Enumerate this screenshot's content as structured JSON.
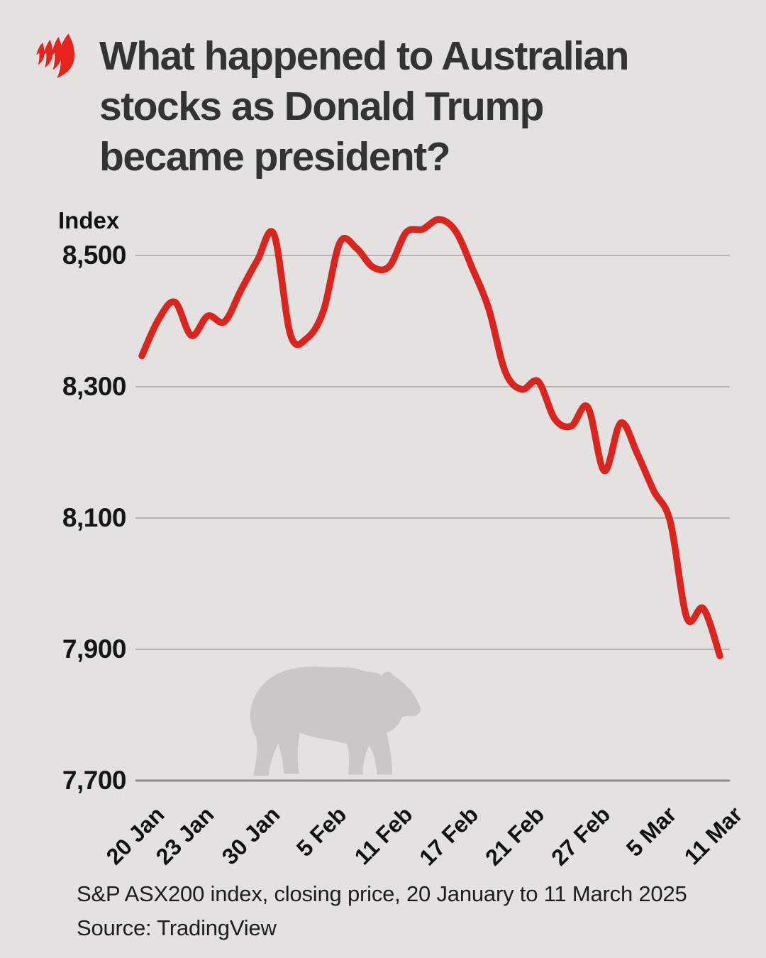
{
  "header": {
    "brand": "SBS",
    "title": "What happened to Australian stocks as Donald Trump became president?",
    "title_lines": [
      "What happened to Australian",
      "stocks as Donald Trump",
      "became president?"
    ]
  },
  "chart_data": {
    "type": "line",
    "title": "What happened to Australian stocks as Donald Trump became president?",
    "ylabel": "Index",
    "xlabel": "",
    "series": [
      {
        "name": "S&P ASX200 closing price",
        "x": [
          "20 Jan",
          "21 Jan",
          "22 Jan",
          "23 Jan",
          "24 Jan",
          "28 Jan",
          "29 Jan",
          "30 Jan",
          "31 Jan",
          "3 Feb",
          "4 Feb",
          "5 Feb",
          "6 Feb",
          "7 Feb",
          "10 Feb",
          "11 Feb",
          "12 Feb",
          "13 Feb",
          "14 Feb",
          "17 Feb",
          "18 Feb",
          "19 Feb",
          "20 Feb",
          "21 Feb",
          "24 Feb",
          "25 Feb",
          "26 Feb",
          "27 Feb",
          "28 Feb",
          "3 Mar",
          "4 Mar",
          "5 Mar",
          "6 Mar",
          "7 Mar",
          "10 Mar",
          "11 Mar"
        ],
        "values": [
          8347,
          8402,
          8429,
          8378,
          8408,
          8399,
          8447,
          8493,
          8532,
          8379,
          8374,
          8416,
          8520,
          8511,
          8482,
          8484,
          8535,
          8540,
          8555,
          8537,
          8481,
          8419,
          8323,
          8296,
          8308,
          8251,
          8240,
          8269,
          8172,
          8245,
          8198,
          8141,
          8094,
          7948,
          7962,
          7890
        ]
      }
    ],
    "y_ticks": [
      {
        "label": "8,500",
        "value": 8500
      },
      {
        "label": "8,300",
        "value": 8300
      },
      {
        "label": "8,100",
        "value": 8100
      },
      {
        "label": "7,900",
        "value": 7900
      },
      {
        "label": "7,700",
        "value": 7700
      }
    ],
    "x_ticks": [
      {
        "label": "20 Jan",
        "index": 0
      },
      {
        "label": "23 Jan",
        "index": 3
      },
      {
        "label": "30 Jan",
        "index": 7
      },
      {
        "label": "5 Feb",
        "index": 11
      },
      {
        "label": "11 Feb",
        "index": 15
      },
      {
        "label": "17 Feb",
        "index": 19
      },
      {
        "label": "21 Feb",
        "index": 23
      },
      {
        "label": "27 Feb",
        "index": 27
      },
      {
        "label": "5 Mar",
        "index": 31
      },
      {
        "label": "11 Mar",
        "index": 35
      }
    ],
    "ylim": [
      7700,
      8600
    ],
    "grid": "horizontal-only",
    "legend": "none",
    "watermark": "bear-silhouette"
  },
  "footer": {
    "caption": "S&P ASX200 index, closing price, 20 January to 11 March 2025",
    "source": "Source: TradingView"
  },
  "colors": {
    "background": "#e3e2e1",
    "line": "#dc241f",
    "logo_red": "#e8231d",
    "gridline": "#b4b3b2",
    "baseline": "#8e8d8c",
    "bear": "#c9c8c7",
    "title_text": "#333333",
    "tick_text": "#111111"
  }
}
